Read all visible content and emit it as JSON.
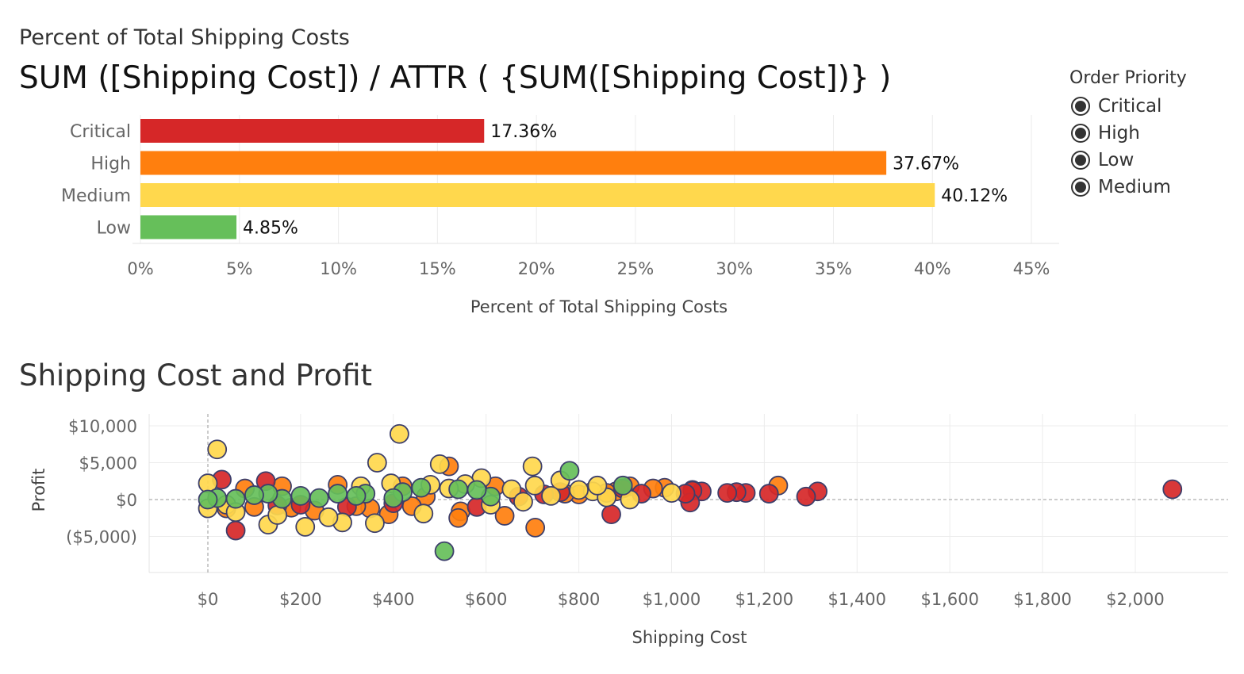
{
  "header": {
    "subtitle": "Percent of Total Shipping Costs",
    "formula_title": "SUM ([Shipping Cost]) / ATTR ( {SUM([Shipping Cost])} )",
    "scatter_title": "Shipping Cost and Profit"
  },
  "legend": {
    "title": "Order Priority",
    "items": [
      {
        "label": "Critical",
        "icon": "filled-circle-icon"
      },
      {
        "label": "High",
        "icon": "filled-circle-icon"
      },
      {
        "label": "Low",
        "icon": "filled-circle-icon"
      },
      {
        "label": "Medium",
        "icon": "filled-circle-icon"
      }
    ]
  },
  "colors": {
    "Critical": "#d62728",
    "High": "#ff7f0e",
    "Medium": "#ffd84d",
    "Low": "#66bf5a",
    "outline": "#3d3f6b",
    "grid": "#ececec"
  },
  "chart_data": [
    {
      "type": "bar",
      "orientation": "horizontal",
      "title": "SUM ([Shipping Cost]) / ATTR ( {SUM([Shipping Cost])} )",
      "categories": [
        "Critical",
        "High",
        "Medium",
        "Low"
      ],
      "values": [
        17.36,
        37.67,
        40.12,
        4.85
      ],
      "data_labels": [
        "17.36%",
        "37.67%",
        "40.12%",
        "4.85%"
      ],
      "xlabel": "Percent of Total Shipping Costs",
      "xlim": [
        0,
        45
      ],
      "xticks": [
        0,
        5,
        10,
        15,
        20,
        25,
        30,
        35,
        40,
        45
      ],
      "xtick_labels": [
        "0%",
        "5%",
        "10%",
        "15%",
        "20%",
        "25%",
        "30%",
        "35%",
        "40%",
        "45%"
      ],
      "grid": true
    },
    {
      "type": "scatter",
      "title": "Shipping Cost and Profit",
      "xlabel": "Shipping Cost",
      "ylabel": "Profit",
      "xlim": [
        -120,
        2470
      ],
      "ylim": [
        -9000,
        10500
      ],
      "xticks": [
        0,
        200,
        400,
        600,
        800,
        1000,
        1200,
        1400,
        1600,
        1800,
        2000
      ],
      "xtick_labels": [
        "$0",
        "$200",
        "$400",
        "$600",
        "$800",
        "$1,000",
        "$1,200",
        "$1,400",
        "$1,600",
        "$1,800",
        "$2,000"
      ],
      "yticks": [
        10000,
        5000,
        0,
        -5000
      ],
      "ytick_labels": [
        "$10,000",
        "$5,000",
        "$0",
        "($5,000)"
      ],
      "grid": true,
      "color_by": "Order Priority",
      "series": [
        {
          "name": "Critical",
          "points": [
            [
              2080,
              1400
            ],
            [
              1315,
              1100
            ],
            [
              1290,
              400
            ],
            [
              1210,
              800
            ],
            [
              1160,
              900
            ],
            [
              1140,
              1000
            ],
            [
              1120,
              900
            ],
            [
              1065,
              1100
            ],
            [
              1045,
              1200
            ],
            [
              1040,
              -400
            ],
            [
              1030,
              800
            ],
            [
              935,
              800
            ],
            [
              895,
              1500
            ],
            [
              870,
              -2000
            ],
            [
              760,
              1000
            ],
            [
              725,
              700
            ],
            [
              670,
              400
            ],
            [
              580,
              -1000
            ],
            [
              400,
              -500
            ],
            [
              300,
              -1000
            ],
            [
              200,
              -700
            ],
            [
              150,
              -800
            ],
            [
              125,
              2500
            ],
            [
              60,
              -4200
            ],
            [
              30,
              2700
            ]
          ]
        },
        {
          "name": "High",
          "points": [
            [
              1230,
              1900
            ],
            [
              1045,
              1300
            ],
            [
              985,
              1600
            ],
            [
              960,
              1500
            ],
            [
              910,
              1800
            ],
            [
              880,
              1100
            ],
            [
              860,
              900
            ],
            [
              800,
              700
            ],
            [
              770,
              800
            ],
            [
              706,
              -3800
            ],
            [
              640,
              -2200
            ],
            [
              620,
              1800
            ],
            [
              545,
              -1600
            ],
            [
              540,
              -2500
            ],
            [
              520,
              4500
            ],
            [
              470,
              400
            ],
            [
              440,
              -900
            ],
            [
              420,
              1800
            ],
            [
              390,
              -2000
            ],
            [
              350,
              -1200
            ],
            [
              320,
              -900
            ],
            [
              280,
              2000
            ],
            [
              230,
              -1500
            ],
            [
              180,
              -1100
            ],
            [
              160,
              1800
            ],
            [
              100,
              -1000
            ],
            [
              80,
              1500
            ],
            [
              40,
              -1200
            ]
          ]
        },
        {
          "name": "Medium",
          "points": [
            [
              413,
              8900
            ],
            [
              20,
              6800
            ],
            [
              365,
              5000
            ],
            [
              500,
              4800
            ],
            [
              700,
              4500
            ],
            [
              760,
              2600
            ],
            [
              590,
              2900
            ],
            [
              705,
              1900
            ],
            [
              830,
              1100
            ],
            [
              860,
              300
            ],
            [
              910,
              0
            ],
            [
              1000,
              900
            ],
            [
              655,
              1400
            ],
            [
              555,
              2100
            ],
            [
              465,
              -1900
            ],
            [
              210,
              -3700
            ],
            [
              290,
              -3100
            ],
            [
              360,
              -3200
            ],
            [
              130,
              -3400
            ],
            [
              0,
              2200
            ],
            [
              0,
              -1200
            ],
            [
              40,
              -700
            ],
            [
              60,
              -1700
            ],
            [
              150,
              -2100
            ],
            [
              260,
              -2400
            ],
            [
              330,
              1800
            ],
            [
              395,
              2200
            ],
            [
              480,
              2000
            ],
            [
              520,
              1500
            ],
            [
              610,
              -700
            ],
            [
              680,
              -300
            ],
            [
              740,
              500
            ],
            [
              800,
              1300
            ],
            [
              840,
              1900
            ]
          ]
        },
        {
          "name": "Low",
          "points": [
            [
              510,
              -7000
            ],
            [
              780,
              3900
            ],
            [
              895,
              1900
            ],
            [
              610,
              400
            ],
            [
              580,
              1300
            ],
            [
              540,
              1400
            ],
            [
              460,
              1600
            ],
            [
              420,
              1000
            ],
            [
              400,
              200
            ],
            [
              340,
              800
            ],
            [
              320,
              500
            ],
            [
              280,
              800
            ],
            [
              240,
              200
            ],
            [
              200,
              500
            ],
            [
              160,
              100
            ],
            [
              130,
              800
            ],
            [
              100,
              600
            ],
            [
              60,
              100
            ],
            [
              20,
              200
            ],
            [
              0,
              0
            ]
          ]
        }
      ]
    }
  ]
}
